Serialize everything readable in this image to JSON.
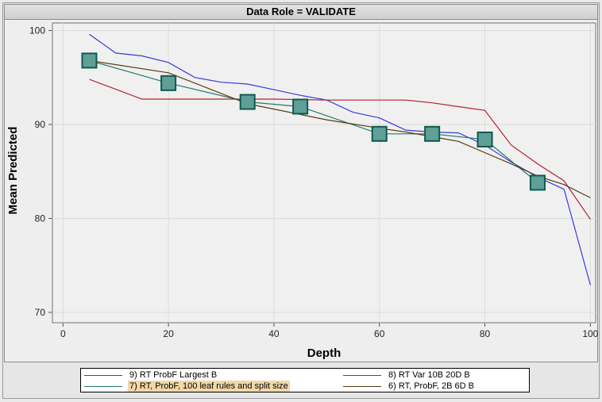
{
  "panel_title": "Data Role = VALIDATE",
  "chart_data": {
    "type": "line",
    "title": "",
    "xlabel": "Depth",
    "ylabel": "Mean Predicted",
    "xlim": [
      -2,
      101
    ],
    "ylim": [
      68.9,
      100.8
    ],
    "xticks": [
      0,
      20,
      40,
      60,
      80,
      100
    ],
    "yticks": [
      70,
      80,
      90,
      100
    ],
    "grid": true,
    "legend_position": "bottom",
    "series": [
      {
        "name": "9) RT ProbF Largest B",
        "color": "#3a3ad8",
        "marker": "none",
        "x": [
          5,
          10,
          15,
          20,
          25,
          30,
          35,
          40,
          45,
          50,
          55,
          60,
          65,
          70,
          75,
          80,
          85,
          90,
          95,
          100
        ],
        "y": [
          99.6,
          97.6,
          97.3,
          96.6,
          95.0,
          94.5,
          94.3,
          93.7,
          93.1,
          92.6,
          91.3,
          90.7,
          89.4,
          89.2,
          89.1,
          87.8,
          86.0,
          84.4,
          83.1,
          72.9
        ]
      },
      {
        "name": "8) RT Var 10B 20D B",
        "color": "#b22233",
        "marker": "none",
        "x": [
          5,
          15,
          30,
          40,
          50,
          60,
          65,
          70,
          75,
          80,
          85,
          90,
          95,
          100
        ],
        "y": [
          94.8,
          92.7,
          92.7,
          92.7,
          92.6,
          92.6,
          92.6,
          92.3,
          91.9,
          91.5,
          87.8,
          85.8,
          84.0,
          79.9
        ]
      },
      {
        "name": "7) RT, ProbF, 100 leaf rules and split size",
        "color": "#217a6e",
        "marker": "square",
        "x": [
          5,
          20,
          35,
          45,
          60,
          70,
          80,
          90
        ],
        "y": [
          96.8,
          94.4,
          92.4,
          91.9,
          89.0,
          89.0,
          88.4,
          83.8
        ]
      },
      {
        "name": "6) RT, ProbF, 2B 6D B",
        "color": "#5a3a12",
        "marker": "none",
        "x": [
          5,
          20,
          35,
          50,
          60,
          65,
          70,
          75,
          80,
          85,
          90,
          95,
          100
        ],
        "y": [
          96.8,
          95.5,
          92.2,
          90.5,
          89.6,
          89.2,
          88.7,
          88.2,
          87.0,
          85.8,
          84.5,
          83.6,
          82.2
        ]
      }
    ]
  }
}
